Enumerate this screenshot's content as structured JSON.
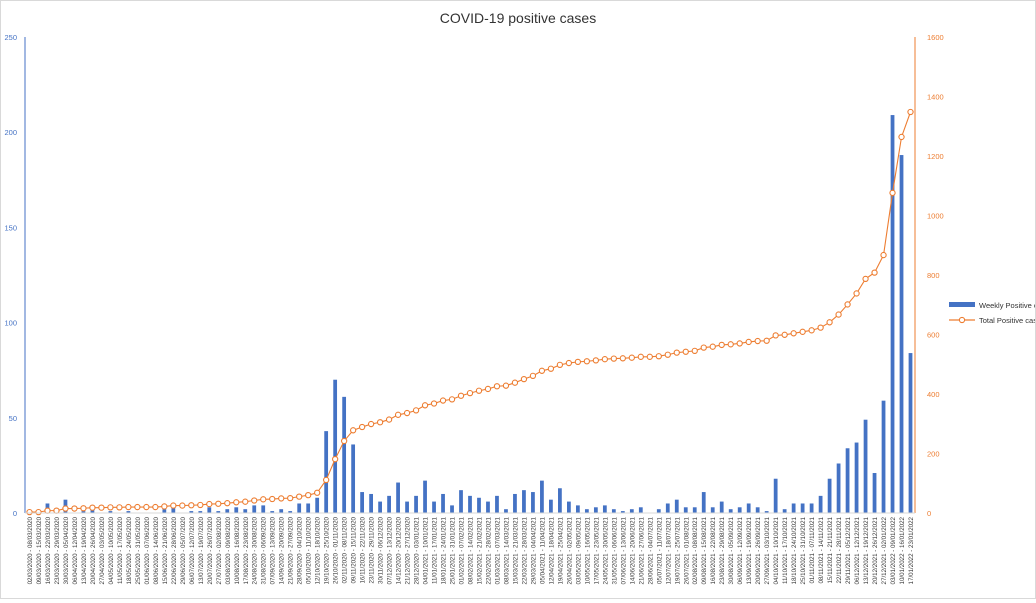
{
  "chart_data": {
    "type": "bar",
    "title": "COVID-19 positive cases",
    "xlabel": "",
    "ylabel": "",
    "y_left": {
      "min": 0,
      "max": 250,
      "ticks": [
        0,
        50,
        100,
        150,
        200,
        250
      ]
    },
    "y_right": {
      "min": 0,
      "max": 1600,
      "ticks": [
        0,
        200,
        400,
        600,
        800,
        1000,
        1200,
        1400,
        1600
      ]
    },
    "grid": false,
    "legend_position": "right",
    "categories": [
      "02/03/2020 - 08/03/2020",
      "09/03/2020 - 15/03/2020",
      "16/03/2020 - 22/03/2020",
      "23/03/2020 - 29/03/2020",
      "30/03/2020 - 05/04/2020",
      "06/04/2020 - 12/04/2020",
      "13/04/2020 - 19/04/2020",
      "20/04/2020 - 26/04/2020",
      "27/04/2020 - 03/05/2020",
      "04/05/2020 - 10/05/2020",
      "11/05/2020 - 17/05/2020",
      "18/05/2020 - 24/05/2020",
      "25/05/2020 - 31/05/2020",
      "01/06/2020 - 07/06/2020",
      "08/06/2020 - 14/06/2020",
      "15/06/2020 - 21/06/2020",
      "22/06/2020 - 28/06/2020",
      "29/06/2020 - 05/07/2020",
      "06/07/2020 - 12/07/2020",
      "13/07/2020 - 19/07/2020",
      "20/07/2020 - 26/07/2020",
      "27/07/2020 - 02/08/2020",
      "03/08/2020 - 09/08/2020",
      "10/08/2020 - 16/08/2020",
      "17/08/2020 - 23/08/2020",
      "24/08/2020 - 30/08/2020",
      "31/08/2020 - 06/09/2020",
      "07/09/2020 - 13/09/2020",
      "14/09/2020 - 20/09/2020",
      "21/09/2020 - 27/09/2020",
      "28/09/2020 - 04/10/2020",
      "05/10/2020 - 11/10/2020",
      "12/10/2020 - 18/10/2020",
      "19/10/2020 - 25/10/2020",
      "26/10/2020 - 01/11/2020",
      "02/11/2020 - 08/11/2020",
      "09/11/2020 - 15/11/2020",
      "16/11/2020 - 22/11/2020",
      "23/11/2020 - 29/11/2020",
      "30/11/2020 - 06/12/2020",
      "07/12/2020 - 13/12/2020",
      "14/12/2020 - 20/12/2020",
      "21/12/2020 - 27/12/2020",
      "28/12/2020 - 03/01/2021",
      "04/01/2021 - 10/01/2021",
      "11/01/2021 - 17/01/2021",
      "18/01/2021 - 24/01/2021",
      "25/01/2021 - 31/01/2021",
      "01/02/2021 - 07/02/2021",
      "08/02/2021 - 14/02/2021",
      "15/02/2021 - 21/02/2021",
      "22/02/2021 - 28/02/2021",
      "01/03/2021 - 07/03/2021",
      "08/03/2021 - 14/03/2021",
      "15/03/2021 - 21/03/2021",
      "22/03/2021 - 28/03/2021",
      "29/03/2021 - 04/04/2021",
      "05/04/2021 - 11/04/2021",
      "12/04/2021 - 18/04/2021",
      "19/04/2021 - 25/04/2021",
      "26/04/2021 - 02/05/2021",
      "03/05/2021 - 09/05/2021",
      "10/05/2021 - 16/05/2021",
      "17/05/2021 - 23/05/2021",
      "24/05/2021 - 30/05/2021",
      "31/05/2021 - 06/06/2021",
      "07/06/2021 - 13/06/2021",
      "14/06/2021 - 20/06/2021",
      "21/06/2021 - 27/06/2021",
      "28/06/2021 - 04/07/2021",
      "05/07/2021 - 11/07/2021",
      "12/07/2021 - 18/07/2021",
      "19/07/2021 - 25/07/2021",
      "26/07/2021 - 01/08/2021",
      "02/08/2021 - 08/08/2021",
      "09/08/2021 - 15/08/2021",
      "16/08/2021 - 22/08/2021",
      "23/08/2021 - 29/08/2021",
      "30/08/2021 - 05/09/2021",
      "06/09/2021 - 12/09/2021",
      "13/09/2021 - 19/09/2021",
      "20/09/2021 - 26/09/2021",
      "27/09/2021 - 03/10/2021",
      "04/10/2021 - 10/10/2021",
      "11/10/2021 - 17/10/2021",
      "18/10/2021 - 24/10/2021",
      "25/10/2021 - 31/10/2021",
      "01/11/2021 - 07/11/2021",
      "08/11/2021 - 14/11/2021",
      "15/11/2021 - 21/11/2021",
      "22/11/2021 - 28/11/2021",
      "29/11/2021 - 05/12/2021",
      "06/12/2021 - 12/12/2021",
      "13/12/2021 - 19/12/2021",
      "20/12/2021 - 26/12/2021",
      "27/12/2021 - 02/01/2022",
      "03/01/2022 - 09/01/2022",
      "10/01/2022 - 16/01/2022",
      "17/01/2022 - 23/01/2022"
    ],
    "series": [
      {
        "name": "Weekly Positive case",
        "type": "bar",
        "axis": "left",
        "color": "#4472c4",
        "values": [
          0,
          0,
          5,
          0,
          7,
          0,
          1,
          2,
          0,
          1,
          0,
          1,
          0,
          0,
          0,
          2,
          3,
          0,
          1,
          1,
          3,
          1,
          2,
          3,
          2,
          4,
          4,
          1,
          2,
          1,
          5,
          5,
          8,
          43,
          70,
          61,
          36,
          11,
          10,
          6,
          9,
          16,
          6,
          9,
          17,
          6,
          10,
          4,
          12,
          9,
          8,
          6,
          9,
          2,
          10,
          12,
          11,
          17,
          7,
          13,
          6,
          4,
          2,
          3,
          4,
          2,
          1,
          2,
          3,
          0,
          2,
          5,
          7,
          3,
          3,
          11,
          3,
          6,
          2,
          3,
          5,
          3,
          1,
          18,
          2,
          5,
          5,
          5,
          9,
          18,
          26,
          34,
          37,
          49,
          21,
          59,
          209,
          188,
          84
        ]
      },
      {
        "name": "Total Positive cases",
        "type": "line",
        "axis": "right",
        "color": "#ed7d31",
        "values": [
          3,
          3,
          8,
          8,
          15,
          15,
          16,
          18,
          18,
          19,
          19,
          20,
          20,
          20,
          20,
          22,
          25,
          25,
          26,
          27,
          30,
          31,
          33,
          36,
          38,
          42,
          46,
          47,
          49,
          50,
          55,
          60,
          68,
          111,
          181,
          242,
          278,
          289,
          299,
          305,
          314,
          330,
          336,
          345,
          362,
          368,
          378,
          382,
          394,
          403,
          411,
          417,
          426,
          428,
          438,
          450,
          461,
          478,
          485,
          498,
          504,
          508,
          510,
          513,
          517,
          519,
          520,
          522,
          525,
          525,
          527,
          532,
          539,
          542,
          545,
          556,
          559,
          565,
          567,
          570,
          575,
          578,
          579,
          597,
          599,
          604,
          609,
          614,
          623,
          641,
          667,
          701,
          738,
          787,
          808,
          867,
          1076,
          1264,
          1348
        ]
      }
    ]
  }
}
